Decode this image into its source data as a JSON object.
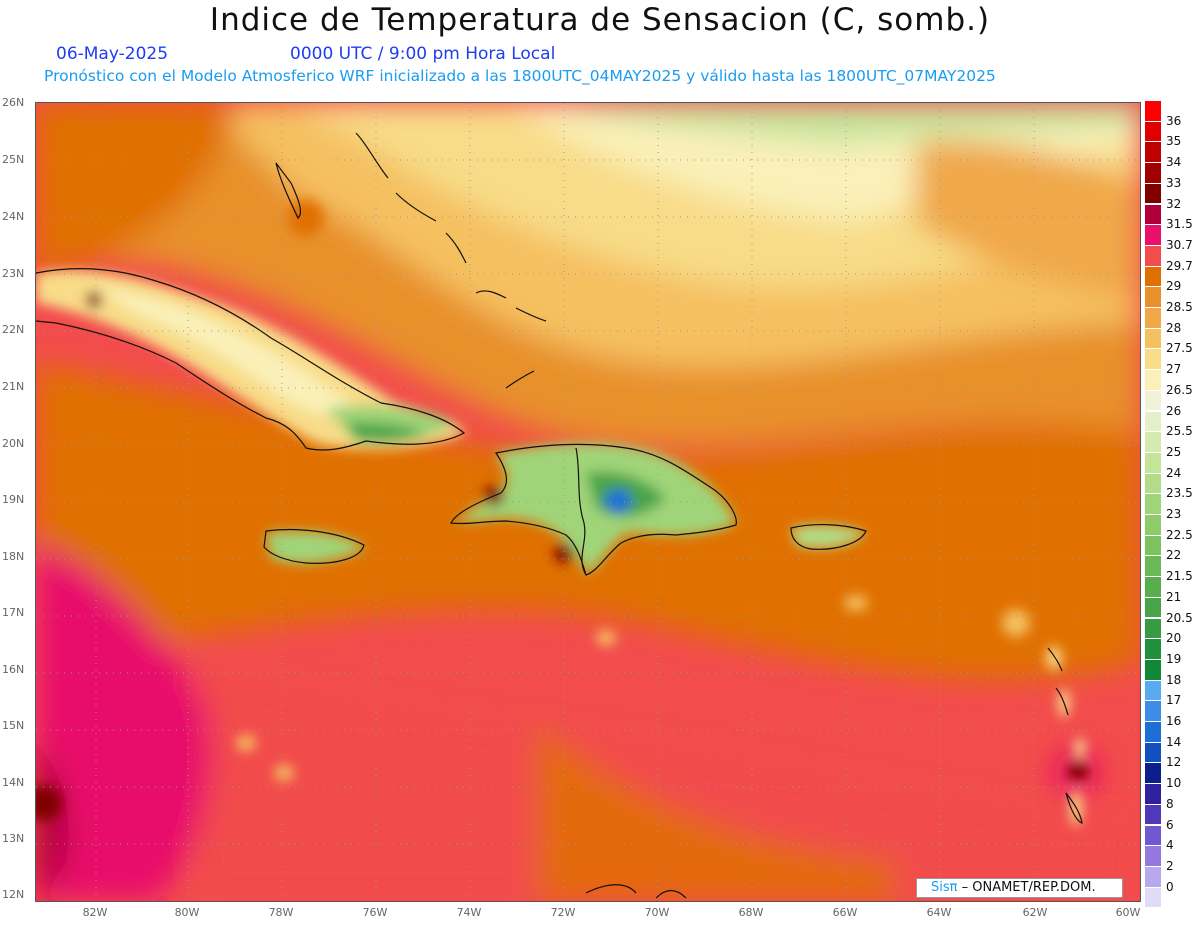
{
  "header": {
    "title": "Indice de Temperatura de Sensacion (C, somb.)",
    "date": "06-May-2025",
    "time": "0000 UTC / 9:00 pm Hora Local",
    "model_line": "Pronóstico con el Modelo Atmosferico WRF inicializado a las 1800UTC_04MAY2025 y válido hasta las  1800UTC_07MAY2025"
  },
  "axes": {
    "lat_labels": [
      "26N",
      "25N",
      "24N",
      "23N",
      "22N",
      "21N",
      "20N",
      "19N",
      "18N",
      "17N",
      "16N",
      "15N",
      "14N",
      "13N",
      "12N"
    ],
    "lon_labels": [
      "82W",
      "80W",
      "78W",
      "76W",
      "74W",
      "72W",
      "70W",
      "68W",
      "66W",
      "64W",
      "62W",
      "60W"
    ]
  },
  "colorbar": {
    "labels": [
      "36",
      "35",
      "34",
      "33",
      "32",
      "31.5",
      "30.7",
      "29.7",
      "29",
      "28.5",
      "28",
      "27.5",
      "27",
      "26.5",
      "26",
      "25.5",
      "25",
      "24",
      "23.5",
      "23",
      "22.5",
      "22",
      "21.5",
      "21",
      "20.5",
      "20",
      "19",
      "18",
      "17",
      "16",
      "14",
      "12",
      "10",
      "8",
      "6",
      "4",
      "2",
      "0"
    ],
    "colors": [
      "#ff0000",
      "#e00000",
      "#c00000",
      "#a00000",
      "#800000",
      "#b0003a",
      "#e8106a",
      "#f24c4c",
      "#e07000",
      "#e8902a",
      "#f0a848",
      "#f5c060",
      "#f8dc88",
      "#faf0b8",
      "#f2f2d8",
      "#e4f0c8",
      "#d4eab0",
      "#c4e49c",
      "#b2dc88",
      "#a0d478",
      "#8ecb6c",
      "#7cc260",
      "#6ab856",
      "#58ae4e",
      "#48a448",
      "#389a42",
      "#20903c",
      "#108836",
      "#5aaaf0",
      "#3c8ce8",
      "#1e6ed8",
      "#1050c0",
      "#0a1e8c",
      "#3020a0",
      "#5038b8",
      "#7058d0",
      "#9478e0",
      "#b8a8f0",
      "#e0dcf8"
    ]
  },
  "credit": {
    "brand": "Sisπ",
    "text": " – ONAMET/REP.DOM."
  }
}
